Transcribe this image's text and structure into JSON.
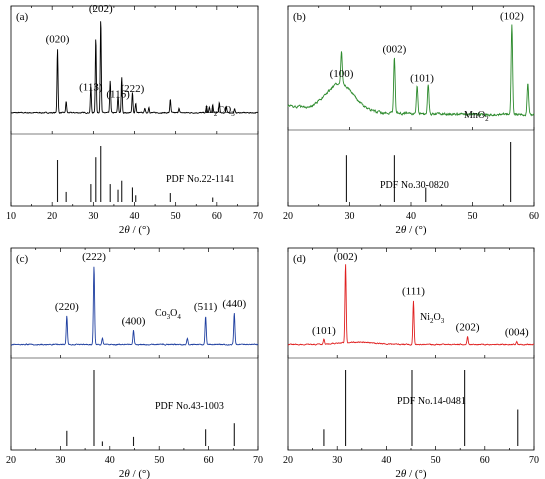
{
  "chart_data": [
    {
      "type": "line",
      "panel_label": "(a)",
      "xlim": [
        10,
        70
      ],
      "xticks": [
        "10",
        "20",
        "30",
        "40",
        "50",
        "60",
        "70"
      ],
      "xlabel": {
        "prefix": "2",
        "theta": "θ",
        "suffix": " / (°)"
      },
      "series": [
        {
          "color": "#000000",
          "baseline": 0.14,
          "noise": 0.01,
          "peaks": [
            [
              21.3,
              0.68
            ],
            [
              23.4,
              0.12
            ],
            [
              29.4,
              0.28
            ],
            [
              30.6,
              0.8
            ],
            [
              31.8,
              1.0
            ],
            [
              34.1,
              0.34
            ],
            [
              36.0,
              0.18
            ],
            [
              36.9,
              0.38
            ],
            [
              39.5,
              0.22
            ],
            [
              40.3,
              0.1
            ],
            [
              42.5,
              0.05
            ],
            [
              43.5,
              0.06
            ],
            [
              48.7,
              0.14
            ],
            [
              50.8,
              0.05
            ],
            [
              57.5,
              0.07
            ],
            [
              58.2,
              0.06
            ],
            [
              59.0,
              0.08
            ],
            [
              60.6,
              0.11
            ],
            [
              62.3,
              0.06
            ],
            [
              64.3,
              0.04
            ]
          ]
        }
      ],
      "peak_labels": [
        {
          "text": "(020)",
          "x": 21.3
        },
        {
          "text": "(113)",
          "x": 29.4
        },
        {
          "text": "(202)",
          "x": 31.8
        },
        {
          "text": "(116)",
          "x": 36.0
        },
        {
          "text": "(222)",
          "x": 39.5
        }
      ],
      "material": {
        "text": "Li",
        "sub1": "2",
        "mid": "CO",
        "sub2": "3"
      },
      "reference": {
        "label": "PDF No.22-1141",
        "lines": [
          [
            21.3,
            0.75
          ],
          [
            23.4,
            0.18
          ],
          [
            29.4,
            0.32
          ],
          [
            30.6,
            0.8
          ],
          [
            31.8,
            1.0
          ],
          [
            34.1,
            0.32
          ],
          [
            36.0,
            0.22
          ],
          [
            36.9,
            0.38
          ],
          [
            39.5,
            0.26
          ],
          [
            40.3,
            0.12
          ],
          [
            48.7,
            0.16
          ],
          [
            59.0,
            0.08
          ]
        ]
      }
    },
    {
      "type": "line",
      "panel_label": "(b)",
      "xlim": [
        20,
        60
      ],
      "xticks": [
        "20",
        "30",
        "40",
        "50",
        "60"
      ],
      "xlabel": {
        "prefix": "2",
        "theta": "θ",
        "suffix": " / (°)"
      },
      "series": [
        {
          "color": "#2e8b2e",
          "baseline": 0.08,
          "noise": 0.025,
          "hump": {
            "center": 28.5,
            "width": 2.2,
            "height": 0.3
          },
          "peaks": [
            [
              28.7,
              0.35
            ],
            [
              37.3,
              0.62
            ],
            [
              41.0,
              0.3
            ],
            [
              42.8,
              0.32
            ],
            [
              56.4,
              0.98
            ],
            [
              59.0,
              0.35
            ]
          ]
        }
      ],
      "peak_labels": [
        {
          "text": "(100)",
          "x": 28.7
        },
        {
          "text": "(002)",
          "x": 37.3
        },
        {
          "text": "(101)",
          "x": 41.8
        },
        {
          "text": "(102)",
          "x": 56.4
        }
      ],
      "material": {
        "text": "MnO",
        "sub1": "2",
        "mid": "",
        "sub2": ""
      },
      "reference": {
        "label": "PDF No.30-0820",
        "lines": [
          [
            29.5,
            0.78
          ],
          [
            37.3,
            0.78
          ],
          [
            42.4,
            0.24
          ],
          [
            56.2,
            1.0
          ]
        ]
      }
    },
    {
      "type": "line",
      "panel_label": "(c)",
      "xlim": [
        20,
        70
      ],
      "xticks": [
        "20",
        "30",
        "40",
        "50",
        "60",
        "70"
      ],
      "xlabel": {
        "prefix": "2",
        "theta": "θ",
        "suffix": " / (°)"
      },
      "series": [
        {
          "color": "#1f3fa0",
          "baseline": 0.07,
          "noise": 0.012,
          "peaks": [
            [
              31.3,
              0.36
            ],
            [
              36.8,
              1.0
            ],
            [
              38.5,
              0.08
            ],
            [
              44.8,
              0.18
            ],
            [
              55.7,
              0.08
            ],
            [
              59.4,
              0.36
            ],
            [
              65.2,
              0.4
            ]
          ]
        }
      ],
      "peak_labels": [
        {
          "text": "(220)",
          "x": 31.3
        },
        {
          "text": "(222)",
          "x": 36.8
        },
        {
          "text": "(400)",
          "x": 44.8
        },
        {
          "text": "(511)",
          "x": 59.4
        },
        {
          "text": "(440)",
          "x": 65.2
        }
      ],
      "material": {
        "text": "Co",
        "sub1": "3",
        "mid": "O",
        "sub2": "4"
      },
      "reference": {
        "label": "PDF No.43-1003",
        "lines": [
          [
            31.3,
            0.2
          ],
          [
            36.8,
            1.0
          ],
          [
            38.5,
            0.06
          ],
          [
            44.8,
            0.12
          ],
          [
            59.4,
            0.22
          ],
          [
            65.2,
            0.3
          ]
        ]
      }
    },
    {
      "type": "line",
      "panel_label": "(d)",
      "xlim": [
        20,
        70
      ],
      "xticks": [
        "20",
        "30",
        "40",
        "50",
        "60",
        "70"
      ],
      "xlabel": {
        "prefix": "2",
        "theta": "θ",
        "suffix": " / (°)"
      },
      "series": [
        {
          "color": "#e02020",
          "baseline": 0.07,
          "noise": 0.012,
          "hump": {
            "center": 34.0,
            "width": 3.5,
            "height": 0.03
          },
          "peaks": [
            [
              27.3,
              0.06
            ],
            [
              31.7,
              1.0
            ],
            [
              45.5,
              0.56
            ],
            [
              56.5,
              0.1
            ],
            [
              66.5,
              0.04
            ]
          ]
        }
      ],
      "peak_labels": [
        {
          "text": "(101)",
          "x": 27.3
        },
        {
          "text": "(002)",
          "x": 31.7
        },
        {
          "text": "(111)",
          "x": 45.5
        },
        {
          "text": "(202)",
          "x": 56.5
        },
        {
          "text": "(004)",
          "x": 66.5
        }
      ],
      "material": {
        "text": "Ni",
        "sub1": "2",
        "mid": "O",
        "sub2": "3"
      },
      "reference": {
        "label": "PDF No.14-0481",
        "lines": [
          [
            27.3,
            0.22
          ],
          [
            31.7,
            1.0
          ],
          [
            45.2,
            1.0
          ],
          [
            55.9,
            1.0
          ],
          [
            66.7,
            0.48
          ]
        ]
      }
    }
  ]
}
